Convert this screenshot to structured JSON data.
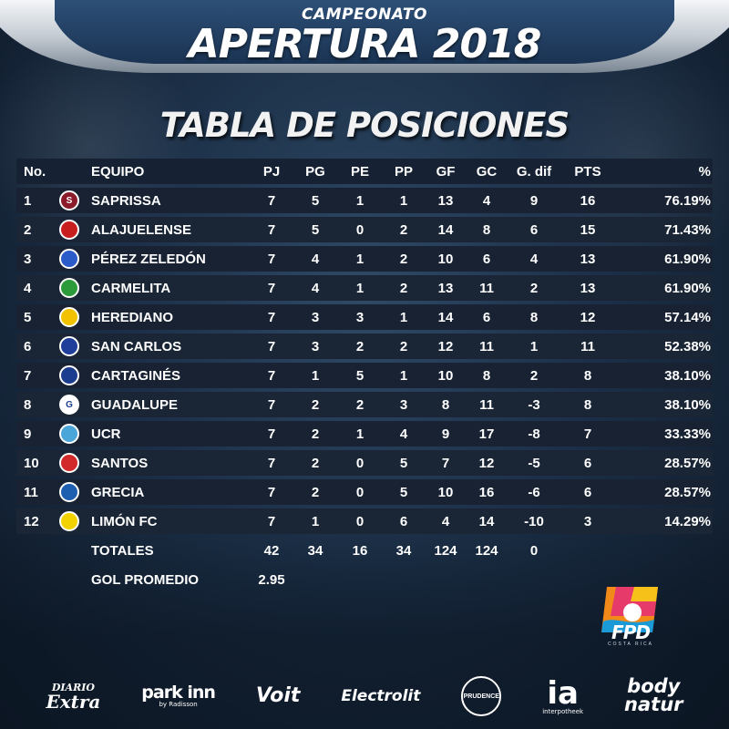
{
  "header": {
    "subtitle": "CAMPEONATO",
    "title": "APERTURA 2018",
    "table_title": "TABLA DE POSICIONES"
  },
  "table": {
    "columns": {
      "no": "No.",
      "team": "EQUIPO",
      "pj": "PJ",
      "pg": "PG",
      "pe": "PE",
      "pp": "PP",
      "gf": "GF",
      "gc": "GC",
      "dif": "G. dif",
      "pts": "PTS",
      "pct": "%"
    },
    "rows": [
      {
        "no": "1",
        "team": "SAPRISSA",
        "pj": "7",
        "pg": "5",
        "pe": "1",
        "pp": "1",
        "gf": "13",
        "gc": "4",
        "dif": "9",
        "pts": "16",
        "pct": "76.19%",
        "logo_text": "S",
        "logo_bg": "#8b1a2a",
        "logo_fg": "#ffffff"
      },
      {
        "no": "2",
        "team": "ALAJUELENSE",
        "pj": "7",
        "pg": "5",
        "pe": "0",
        "pp": "2",
        "gf": "14",
        "gc": "8",
        "dif": "6",
        "pts": "15",
        "pct": "71.43%",
        "logo_text": "",
        "logo_bg": "#c81e1e",
        "logo_fg": "#111111"
      },
      {
        "no": "3",
        "team": "PÉREZ ZELEDÓN",
        "pj": "7",
        "pg": "4",
        "pe": "1",
        "pp": "2",
        "gf": "10",
        "gc": "6",
        "dif": "4",
        "pts": "13",
        "pct": "61.90%",
        "logo_text": "",
        "logo_bg": "#2a5bc8",
        "logo_fg": "#ffffff"
      },
      {
        "no": "4",
        "team": "CARMELITA",
        "pj": "7",
        "pg": "4",
        "pe": "1",
        "pp": "2",
        "gf": "13",
        "gc": "11",
        "dif": "2",
        "pts": "13",
        "pct": "61.90%",
        "logo_text": "",
        "logo_bg": "#2e9b3a",
        "logo_fg": "#ffffff"
      },
      {
        "no": "5",
        "team": "HEREDIANO",
        "pj": "7",
        "pg": "3",
        "pe": "3",
        "pp": "1",
        "gf": "14",
        "gc": "6",
        "dif": "8",
        "pts": "12",
        "pct": "57.14%",
        "logo_text": "",
        "logo_bg": "#f2c200",
        "logo_fg": "#c81e1e"
      },
      {
        "no": "6",
        "team": "SAN CARLOS",
        "pj": "7",
        "pg": "3",
        "pe": "2",
        "pp": "2",
        "gf": "12",
        "gc": "11",
        "dif": "1",
        "pts": "11",
        "pct": "52.38%",
        "logo_text": "",
        "logo_bg": "#1f3f9a",
        "logo_fg": "#ffffff"
      },
      {
        "no": "7",
        "team": "CARTAGINÉS",
        "pj": "7",
        "pg": "1",
        "pe": "5",
        "pp": "1",
        "gf": "10",
        "gc": "8",
        "dif": "2",
        "pts": "8",
        "pct": "38.10%",
        "logo_text": "",
        "logo_bg": "#1c3d8f",
        "logo_fg": "#ffffff"
      },
      {
        "no": "8",
        "team": "GUADALUPE",
        "pj": "7",
        "pg": "2",
        "pe": "2",
        "pp": "3",
        "gf": "8",
        "gc": "11",
        "dif": "-3",
        "pts": "8",
        "pct": "38.10%",
        "logo_text": "G",
        "logo_bg": "#ffffff",
        "logo_fg": "#1c3d8f"
      },
      {
        "no": "9",
        "team": "UCR",
        "pj": "7",
        "pg": "2",
        "pe": "1",
        "pp": "4",
        "gf": "9",
        "gc": "17",
        "dif": "-8",
        "pts": "7",
        "pct": "33.33%",
        "logo_text": "",
        "logo_bg": "#4aa6d9",
        "logo_fg": "#ffffff"
      },
      {
        "no": "10",
        "team": "SANTOS",
        "pj": "7",
        "pg": "2",
        "pe": "0",
        "pp": "5",
        "gf": "7",
        "gc": "12",
        "dif": "-5",
        "pts": "6",
        "pct": "28.57%",
        "logo_text": "",
        "logo_bg": "#d22a2a",
        "logo_fg": "#ffffff"
      },
      {
        "no": "11",
        "team": "GRECIA",
        "pj": "7",
        "pg": "2",
        "pe": "0",
        "pp": "5",
        "gf": "10",
        "gc": "16",
        "dif": "-6",
        "pts": "6",
        "pct": "28.57%",
        "logo_text": "",
        "logo_bg": "#1f5fb0",
        "logo_fg": "#111111"
      },
      {
        "no": "12",
        "team": "LIMÓN FC",
        "pj": "7",
        "pg": "1",
        "pe": "0",
        "pp": "6",
        "gf": "4",
        "gc": "14",
        "dif": "-10",
        "pts": "3",
        "pct": "14.29%",
        "logo_text": "",
        "logo_bg": "#f2d200",
        "logo_fg": "#1e8a3a"
      }
    ],
    "totals": {
      "label": "TOTALES",
      "pj": "42",
      "pg": "34",
      "pe": "16",
      "pp": "34",
      "gf": "124",
      "gc": "124",
      "dif": "0"
    },
    "average": {
      "label": "GOL PROMEDIO",
      "value": "2.95"
    }
  },
  "fpd": {
    "name": "FPD",
    "tagline": "COSTA RICA"
  },
  "sponsors": {
    "diario_top": "DIARIO",
    "diario_bottom": "Extra",
    "park": "park inn",
    "park_sub": "by Radisson",
    "voit": "Voit",
    "electrolit": "Electrolit",
    "prudence": "PRUDENCE",
    "ia": "ia",
    "ia_sub": "interpotheek",
    "body_top": "body",
    "body_bottom": "natur"
  },
  "colors": {
    "background": "#1c3048",
    "row": "#1a2535",
    "header_row": "#162233",
    "text": "#ffffff"
  }
}
